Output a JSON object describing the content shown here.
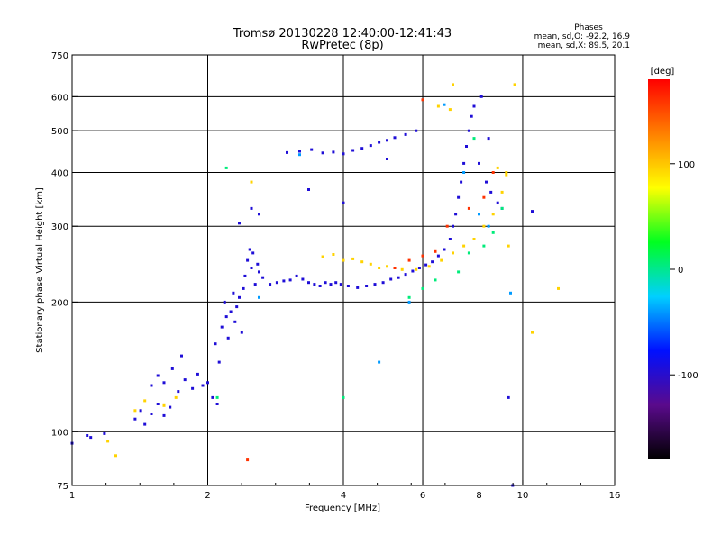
{
  "chart_data": {
    "type": "scatter",
    "title": "Tromsø 20130228 12:40:00-12:41:43",
    "subtitle": "RwPretec (8p)",
    "xlabel": "Frequency [MHz]",
    "ylabel": "Stationary phase Virtual Height [km]",
    "x_scale": "log2",
    "y_scale": "log",
    "xlim": [
      1,
      16
    ],
    "ylim": [
      75,
      750
    ],
    "x_ticks": [
      1,
      2,
      4,
      6,
      8,
      10,
      16
    ],
    "y_ticks": [
      75,
      100,
      200,
      300,
      400,
      500,
      600,
      750
    ],
    "grid": true,
    "phase_stats": {
      "heading": "Phases",
      "line_o": "mean, sd,O: -92.2, 16.9",
      "line_x": "mean, sd,X:  89.5, 20.1"
    },
    "colorbar": {
      "label": "[deg]",
      "range": [
        -180,
        180
      ],
      "ticks": [
        "100",
        "0",
        "-100"
      ],
      "tick_values": [
        100,
        0,
        -100
      ],
      "colors": [
        "#000000",
        "#5a0a8c",
        "#0010ff",
        "#00d0ff",
        "#00ff20",
        "#ffff00",
        "#ff8000",
        "#ff0000"
      ]
    },
    "series": [
      {
        "phase": -95,
        "points": [
          [
            1.0,
            94
          ],
          [
            1.08,
            98
          ],
          [
            1.1,
            97
          ],
          [
            1.18,
            99
          ],
          [
            1.38,
            107
          ],
          [
            1.42,
            112
          ],
          [
            1.45,
            104
          ],
          [
            1.5,
            110
          ],
          [
            1.55,
            116
          ],
          [
            1.6,
            109
          ],
          [
            1.65,
            114
          ],
          [
            1.5,
            128
          ],
          [
            1.55,
            135
          ],
          [
            1.6,
            130
          ],
          [
            1.67,
            140
          ],
          [
            1.72,
            124
          ],
          [
            1.78,
            132
          ],
          [
            1.85,
            126
          ],
          [
            1.9,
            136
          ],
          [
            1.95,
            128
          ],
          [
            2.0,
            130
          ],
          [
            2.05,
            120
          ],
          [
            2.1,
            116
          ],
          [
            1.75,
            150
          ],
          [
            2.08,
            160
          ],
          [
            2.12,
            145
          ],
          [
            2.15,
            175
          ],
          [
            2.18,
            200
          ],
          [
            2.2,
            185
          ],
          [
            2.22,
            165
          ],
          [
            2.25,
            190
          ],
          [
            2.28,
            210
          ],
          [
            2.3,
            180
          ],
          [
            2.32,
            195
          ],
          [
            2.35,
            205
          ],
          [
            2.38,
            170
          ],
          [
            2.4,
            215
          ],
          [
            2.42,
            230
          ],
          [
            2.45,
            250
          ],
          [
            2.48,
            265
          ],
          [
            2.5,
            240
          ],
          [
            2.52,
            260
          ],
          [
            2.55,
            220
          ],
          [
            2.58,
            245
          ],
          [
            2.6,
            235
          ],
          [
            2.65,
            228
          ],
          [
            2.75,
            220
          ],
          [
            2.85,
            222
          ],
          [
            2.95,
            224
          ],
          [
            3.05,
            225
          ],
          [
            3.15,
            230
          ],
          [
            3.25,
            226
          ],
          [
            3.35,
            222
          ],
          [
            3.45,
            220
          ],
          [
            3.55,
            218
          ],
          [
            3.65,
            222
          ],
          [
            3.75,
            220
          ],
          [
            3.85,
            222
          ],
          [
            3.95,
            220
          ],
          [
            4.1,
            218
          ],
          [
            4.3,
            216
          ],
          [
            4.5,
            218
          ],
          [
            4.7,
            220
          ],
          [
            4.9,
            222
          ],
          [
            5.1,
            226
          ],
          [
            5.3,
            228
          ],
          [
            5.5,
            232
          ],
          [
            5.7,
            236
          ],
          [
            5.9,
            240
          ],
          [
            6.1,
            244
          ],
          [
            6.3,
            248
          ],
          [
            6.5,
            256
          ],
          [
            6.7,
            265
          ],
          [
            6.9,
            280
          ],
          [
            7.0,
            300
          ],
          [
            7.1,
            320
          ],
          [
            7.2,
            350
          ],
          [
            7.3,
            380
          ],
          [
            7.4,
            420
          ],
          [
            7.5,
            460
          ],
          [
            7.6,
            500
          ],
          [
            7.7,
            540
          ],
          [
            7.8,
            570
          ],
          [
            3.0,
            445
          ],
          [
            3.2,
            448
          ],
          [
            3.4,
            452
          ],
          [
            3.6,
            444
          ],
          [
            3.8,
            446
          ],
          [
            4.0,
            442
          ],
          [
            4.2,
            450
          ],
          [
            4.4,
            455
          ],
          [
            4.6,
            462
          ],
          [
            4.8,
            470
          ],
          [
            5.0,
            475
          ],
          [
            5.2,
            482
          ],
          [
            5.5,
            490
          ],
          [
            5.8,
            500
          ],
          [
            2.5,
            330
          ],
          [
            2.6,
            320
          ],
          [
            2.35,
            305
          ],
          [
            3.35,
            365
          ],
          [
            4.0,
            340
          ],
          [
            5.0,
            430
          ],
          [
            8.0,
            420
          ],
          [
            8.3,
            380
          ],
          [
            8.5,
            360
          ],
          [
            8.8,
            340
          ],
          [
            9.0,
            330
          ],
          [
            8.1,
            600
          ],
          [
            8.4,
            480
          ],
          [
            9.5,
            75
          ],
          [
            10.5,
            325
          ],
          [
            9.3,
            120
          ]
        ]
      },
      {
        "phase": 95,
        "points": [
          [
            1.2,
            95
          ],
          [
            1.25,
            88
          ],
          [
            1.38,
            112
          ],
          [
            1.45,
            118
          ],
          [
            1.6,
            115
          ],
          [
            1.7,
            120
          ],
          [
            2.5,
            380
          ],
          [
            3.6,
            255
          ],
          [
            3.8,
            258
          ],
          [
            4.0,
            250
          ],
          [
            4.2,
            252
          ],
          [
            4.4,
            248
          ],
          [
            4.6,
            245
          ],
          [
            4.8,
            240
          ],
          [
            5.0,
            242
          ],
          [
            5.4,
            238
          ],
          [
            5.8,
            238
          ],
          [
            6.2,
            242
          ],
          [
            6.6,
            250
          ],
          [
            7.0,
            260
          ],
          [
            7.4,
            270
          ],
          [
            7.8,
            280
          ],
          [
            8.2,
            300
          ],
          [
            8.6,
            320
          ],
          [
            9.0,
            360
          ],
          [
            9.2,
            400
          ],
          [
            8.8,
            410
          ],
          [
            9.6,
            640
          ],
          [
            7.0,
            640
          ],
          [
            6.9,
            560
          ],
          [
            10.5,
            170
          ],
          [
            12.0,
            215
          ],
          [
            6.5,
            570
          ],
          [
            9.2,
            395
          ],
          [
            9.3,
            270
          ]
        ]
      },
      {
        "phase": 5,
        "points": [
          [
            2.1,
            120
          ],
          [
            5.6,
            205
          ],
          [
            6.0,
            215
          ],
          [
            6.4,
            225
          ],
          [
            7.2,
            235
          ],
          [
            7.6,
            260
          ],
          [
            8.2,
            270
          ],
          [
            8.6,
            290
          ],
          [
            9.0,
            330
          ],
          [
            2.2,
            410
          ],
          [
            4.0,
            120
          ],
          [
            7.8,
            480
          ]
        ]
      },
      {
        "phase": -40,
        "points": [
          [
            2.6,
            205
          ],
          [
            3.2,
            440
          ],
          [
            6.7,
            575
          ],
          [
            7.4,
            400
          ],
          [
            8.0,
            320
          ],
          [
            8.4,
            300
          ],
          [
            4.8,
            145
          ],
          [
            5.6,
            200
          ],
          [
            9.4,
            210
          ]
        ]
      },
      {
        "phase": 160,
        "points": [
          [
            2.45,
            86
          ],
          [
            5.2,
            240
          ],
          [
            5.6,
            250
          ],
          [
            6.0,
            256
          ],
          [
            6.4,
            262
          ],
          [
            6.8,
            300
          ],
          [
            7.6,
            330
          ],
          [
            8.2,
            350
          ],
          [
            8.6,
            400
          ],
          [
            6.0,
            590
          ]
        ]
      }
    ]
  }
}
